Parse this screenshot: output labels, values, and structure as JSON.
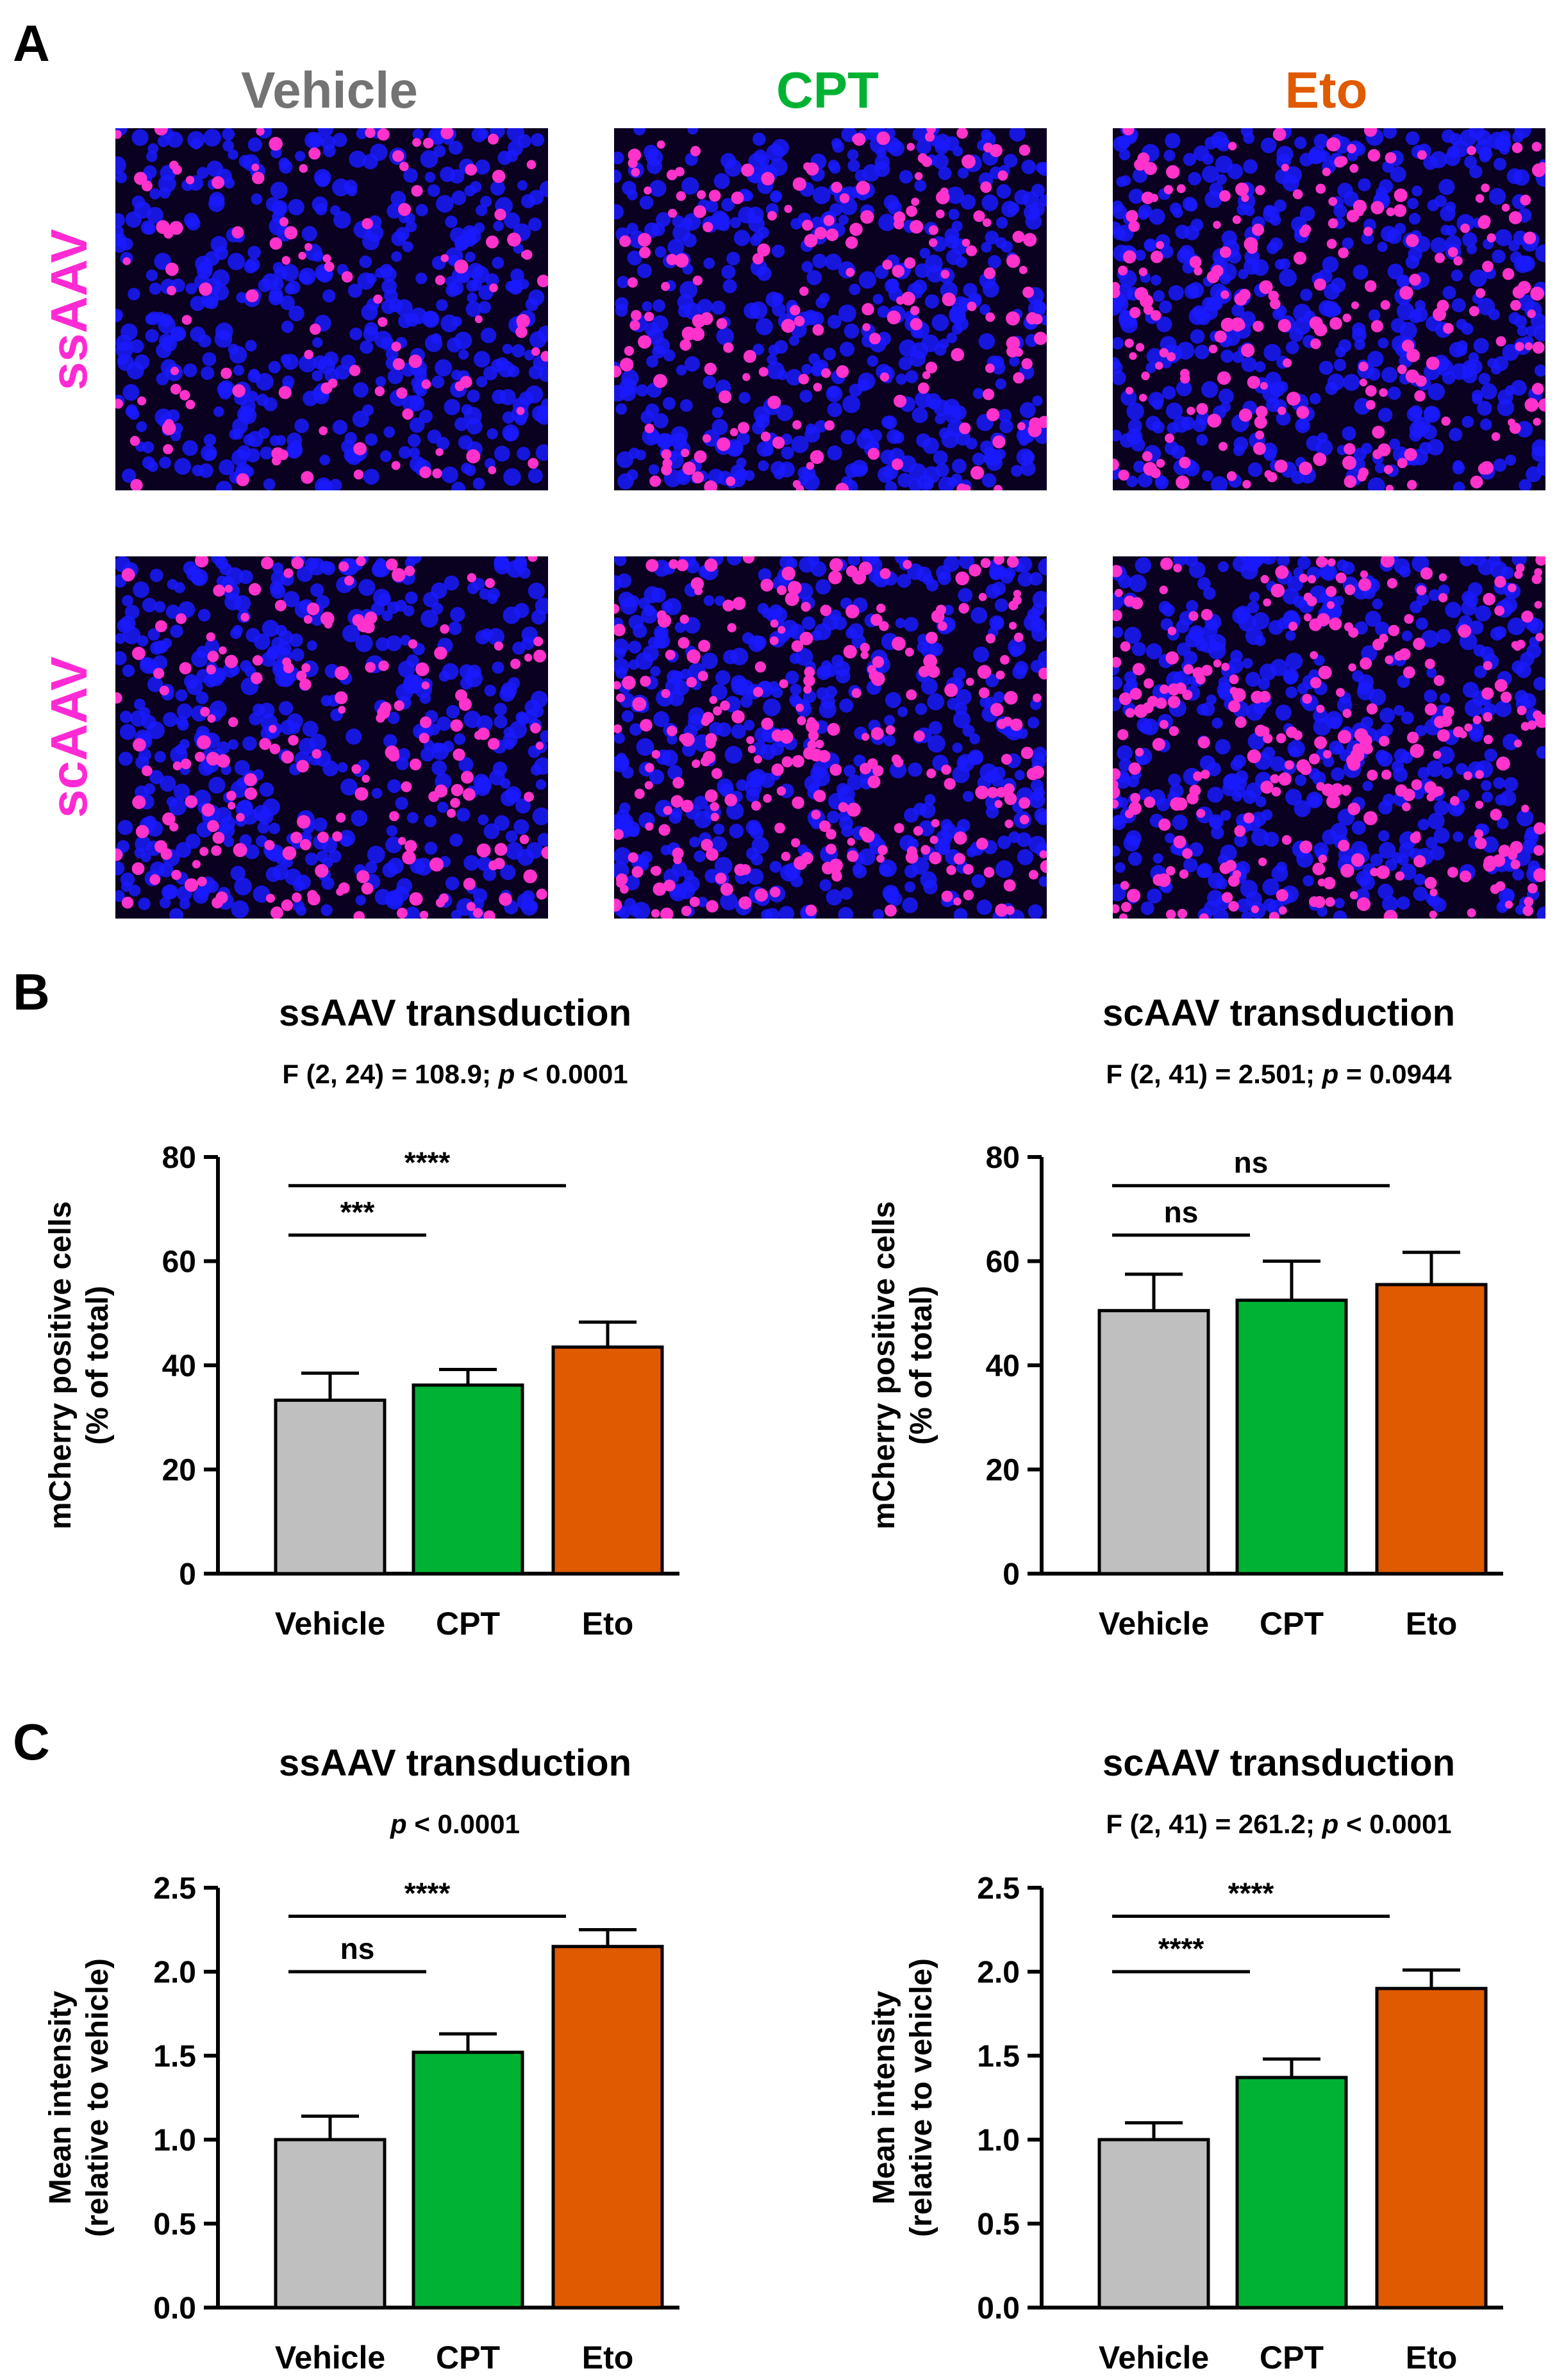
{
  "panel_labels": [
    "A",
    "B",
    "C"
  ],
  "micrographs": {
    "column_titles": [
      {
        "text": "Vehicle",
        "color": "#737373"
      },
      {
        "text": "CPT",
        "color": "#00b233"
      },
      {
        "text": "Eto",
        "color": "#e05a00"
      }
    ],
    "row_titles": [
      {
        "text": "ssAAV",
        "color": "#ff2ad4"
      },
      {
        "text": "scAAV",
        "color": "#ff2ad4"
      }
    ],
    "nucleus_color": "#1a1aff",
    "transduced_color": "#ff33cc",
    "background_color": "#0a0020"
  },
  "chart_data": [
    {
      "id": "B-left",
      "type": "bar",
      "title": "ssAAV transduction",
      "subtitle_parts": [
        "F (2, 24) = 108.9; ",
        "p",
        " < 0.0001"
      ],
      "ylabel_lines": [
        "mCherry positive cells",
        "(%  of total)"
      ],
      "categories": [
        "Vehicle",
        "CPT",
        "Eto"
      ],
      "values": [
        33.3,
        36.2,
        43.5
      ],
      "errors": [
        5.2,
        3.0,
        4.8
      ],
      "colors": [
        "#bfbfbf",
        "#00b233",
        "#e05a00"
      ],
      "ylim": [
        0,
        80
      ],
      "yticks": [
        0,
        20,
        40,
        60,
        80
      ],
      "ytick_labels": [
        "0",
        "20",
        "40",
        "60",
        "80"
      ],
      "comparisons": [
        {
          "from": 0,
          "to": 1,
          "y": 65,
          "label": "***"
        },
        {
          "from": 0,
          "to": 2,
          "y": 74.5,
          "label": "****"
        }
      ]
    },
    {
      "id": "B-right",
      "type": "bar",
      "title": "scAAV transduction",
      "subtitle_parts": [
        "F (2, 41) = 2.501; ",
        "p",
        " = 0.0944"
      ],
      "ylabel_lines": [
        "mCherry positive cells",
        "(%  of total)"
      ],
      "categories": [
        "Vehicle",
        "CPT",
        "Eto"
      ],
      "values": [
        50.5,
        52.5,
        55.5
      ],
      "errors": [
        7.0,
        7.5,
        6.2
      ],
      "colors": [
        "#bfbfbf",
        "#00b233",
        "#e05a00"
      ],
      "ylim": [
        0,
        80
      ],
      "yticks": [
        0,
        20,
        40,
        60,
        80
      ],
      "ytick_labels": [
        "0",
        "20",
        "40",
        "60",
        "80"
      ],
      "comparisons": [
        {
          "from": 0,
          "to": 1,
          "y": 65,
          "label": "ns"
        },
        {
          "from": 0,
          "to": 2,
          "y": 74.5,
          "label": "ns"
        }
      ]
    },
    {
      "id": "C-left",
      "type": "bar",
      "title": "ssAAV transduction",
      "subtitle_parts": [
        "",
        "p",
        " < 0.0001"
      ],
      "ylabel_lines": [
        "Mean intensity",
        "(relative to vehicle)"
      ],
      "categories": [
        "Vehicle",
        "CPT",
        "Eto"
      ],
      "values": [
        1.0,
        1.52,
        2.15
      ],
      "errors": [
        0.14,
        0.11,
        0.1
      ],
      "colors": [
        "#bfbfbf",
        "#00b233",
        "#e05a00"
      ],
      "ylim": [
        0,
        2.5
      ],
      "yticks": [
        0,
        0.5,
        1,
        1.5,
        2,
        2.5
      ],
      "ytick_labels": [
        "0.0",
        "0.5",
        "1.0",
        "1.5",
        "2.0",
        "2.5"
      ],
      "comparisons": [
        {
          "from": 0,
          "to": 1,
          "y": 2.0,
          "label": "ns"
        },
        {
          "from": 0,
          "to": 2,
          "y": 2.33,
          "label": "****"
        }
      ]
    },
    {
      "id": "C-right",
      "type": "bar",
      "title": "scAAV transduction",
      "subtitle_parts": [
        "F (2, 41) = 261.2; ",
        "p",
        " < 0.0001"
      ],
      "ylabel_lines": [
        "Mean intensity",
        "(relative to vehicle)"
      ],
      "categories": [
        "Vehicle",
        "CPT",
        "Eto"
      ],
      "values": [
        1.0,
        1.37,
        1.9
      ],
      "errors": [
        0.1,
        0.11,
        0.11
      ],
      "colors": [
        "#bfbfbf",
        "#00b233",
        "#e05a00"
      ],
      "ylim": [
        0,
        2.5
      ],
      "yticks": [
        0,
        0.5,
        1,
        1.5,
        2,
        2.5
      ],
      "ytick_labels": [
        "0.0",
        "0.5",
        "1.0",
        "1.5",
        "2.0",
        "2.5"
      ],
      "comparisons": [
        {
          "from": 0,
          "to": 1,
          "y": 2.0,
          "label": "****"
        },
        {
          "from": 0,
          "to": 2,
          "y": 2.33,
          "label": "****"
        }
      ]
    }
  ]
}
